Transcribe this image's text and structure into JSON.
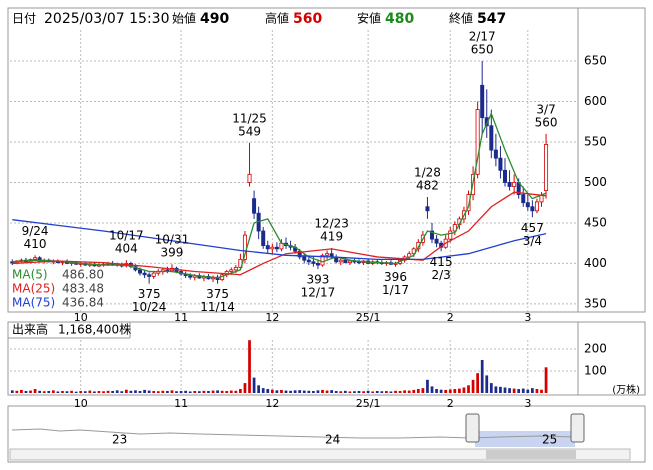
{
  "header": {
    "date_label": "日付",
    "datetime": "2025/03/07 15:30",
    "open_label": "始値",
    "open": 490,
    "high_label": "高値",
    "high": 560,
    "low_label": "安値",
    "low": 480,
    "close_label": "終値",
    "close": 547
  },
  "chart_data": [
    {
      "type": "candlestick",
      "ylim": [
        340,
        713
      ],
      "yticks": [
        350,
        400,
        450,
        500,
        550,
        600,
        650
      ],
      "xlim": [
        -0.5,
        124
      ],
      "xticks": [
        {
          "value": 15,
          "label": "10"
        },
        {
          "value": 37,
          "label": "11"
        },
        {
          "value": 57,
          "label": "12"
        },
        {
          "value": 78,
          "label": "25/1"
        },
        {
          "value": 96,
          "label": "2"
        },
        {
          "value": 113,
          "label": "3"
        }
      ],
      "up_color": "#d40000",
      "down_color": "#1c2a8c",
      "candles": [
        [
          402,
          405,
          398,
          401
        ],
        [
          401,
          404,
          399,
          403
        ],
        [
          403,
          406,
          400,
          404
        ],
        [
          404,
          407,
          401,
          402
        ],
        [
          402,
          406,
          400,
          405
        ],
        [
          405,
          410,
          403,
          407
        ],
        [
          407,
          409,
          402,
          403
        ],
        [
          403,
          406,
          400,
          404
        ],
        [
          404,
          406,
          401,
          402
        ],
        [
          402,
          405,
          399,
          403
        ],
        [
          403,
          405,
          400,
          401
        ],
        [
          401,
          403,
          398,
          402
        ],
        [
          402,
          405,
          399,
          400
        ],
        [
          400,
          403,
          397,
          401
        ],
        [
          401,
          403,
          398,
          399
        ],
        [
          399,
          402,
          396,
          400
        ],
        [
          400,
          402,
          397,
          398
        ],
        [
          398,
          401,
          395,
          399
        ],
        [
          399,
          402,
          396,
          397
        ],
        [
          397,
          400,
          394,
          398
        ],
        [
          398,
          401,
          396,
          399
        ],
        [
          399,
          402,
          397,
          400
        ],
        [
          400,
          403,
          397,
          399
        ],
        [
          399,
          401,
          396,
          398
        ],
        [
          398,
          401,
          395,
          397
        ],
        [
          397,
          404,
          395,
          400
        ],
        [
          400,
          402,
          394,
          396
        ],
        [
          396,
          399,
          390,
          392
        ],
        [
          392,
          395,
          385,
          388
        ],
        [
          388,
          392,
          382,
          386
        ],
        [
          386,
          389,
          375,
          384
        ],
        [
          384,
          390,
          381,
          388
        ],
        [
          388,
          393,
          385,
          390
        ],
        [
          390,
          395,
          386,
          392
        ],
        [
          392,
          396,
          388,
          391
        ],
        [
          391,
          399,
          389,
          394
        ],
        [
          394,
          396,
          388,
          390
        ],
        [
          390,
          393,
          385,
          387
        ],
        [
          387,
          390,
          382,
          385
        ],
        [
          385,
          388,
          380,
          383
        ],
        [
          383,
          387,
          379,
          385
        ],
        [
          385,
          388,
          381,
          382
        ],
        [
          382,
          386,
          378,
          384
        ],
        [
          384,
          387,
          380,
          381
        ],
        [
          381,
          385,
          377,
          383
        ],
        [
          383,
          386,
          375,
          380
        ],
        [
          380,
          388,
          378,
          386
        ],
        [
          386,
          392,
          383,
          390
        ],
        [
          390,
          395,
          386,
          392
        ],
        [
          392,
          398,
          388,
          395
        ],
        [
          395,
          412,
          392,
          405
        ],
        [
          405,
          440,
          400,
          435
        ],
        [
          500,
          549,
          495,
          510
        ],
        [
          480,
          490,
          455,
          462
        ],
        [
          462,
          470,
          430,
          440
        ],
        [
          440,
          445,
          418,
          422
        ],
        [
          422,
          428,
          412,
          418
        ],
        [
          418,
          424,
          412,
          420
        ],
        [
          420,
          426,
          414,
          418
        ],
        [
          418,
          430,
          415,
          425
        ],
        [
          425,
          432,
          418,
          422
        ],
        [
          422,
          428,
          416,
          420
        ],
        [
          420,
          424,
          412,
          415
        ],
        [
          415,
          418,
          405,
          408
        ],
        [
          408,
          412,
          400,
          404
        ],
        [
          404,
          410,
          398,
          402
        ],
        [
          402,
          408,
          396,
          400
        ],
        [
          400,
          405,
          393,
          398
        ],
        [
          398,
          412,
          396,
          410
        ],
        [
          410,
          416,
          405,
          412
        ],
        [
          412,
          419,
          406,
          408
        ],
        [
          408,
          411,
          400,
          402
        ],
        [
          402,
          406,
          398,
          404
        ],
        [
          404,
          407,
          400,
          401
        ],
        [
          401,
          405,
          398,
          403
        ],
        [
          403,
          406,
          400,
          402
        ],
        [
          402,
          405,
          399,
          401
        ],
        [
          401,
          404,
          398,
          403
        ],
        [
          403,
          406,
          399,
          400
        ],
        [
          400,
          404,
          398,
          402
        ],
        [
          402,
          405,
          399,
          401
        ],
        [
          401,
          404,
          398,
          400
        ],
        [
          400,
          403,
          397,
          401
        ],
        [
          401,
          404,
          398,
          399
        ],
        [
          399,
          402,
          396,
          400
        ],
        [
          400,
          406,
          398,
          404
        ],
        [
          404,
          410,
          401,
          408
        ],
        [
          408,
          415,
          405,
          412
        ],
        [
          412,
          420,
          408,
          418
        ],
        [
          418,
          430,
          414,
          426
        ],
        [
          426,
          440,
          422,
          435
        ],
        [
          470,
          482,
          455,
          465
        ],
        [
          440,
          450,
          425,
          430
        ],
        [
          430,
          435,
          420,
          425
        ],
        [
          425,
          428,
          415,
          420
        ],
        [
          420,
          435,
          418,
          430
        ],
        [
          430,
          445,
          426,
          440
        ],
        [
          440,
          452,
          435,
          448
        ],
        [
          448,
          458,
          442,
          455
        ],
        [
          455,
          470,
          450,
          465
        ],
        [
          465,
          490,
          460,
          485
        ],
        [
          485,
          520,
          478,
          510
        ],
        [
          510,
          600,
          505,
          590
        ],
        [
          620,
          650,
          560,
          580
        ],
        [
          580,
          615,
          555,
          570
        ],
        [
          570,
          590,
          530,
          540
        ],
        [
          540,
          560,
          520,
          530
        ],
        [
          530,
          545,
          505,
          515
        ],
        [
          515,
          530,
          495,
          500
        ],
        [
          500,
          515,
          490,
          495
        ],
        [
          495,
          510,
          485,
          500
        ],
        [
          500,
          505,
          480,
          485
        ],
        [
          485,
          495,
          470,
          475
        ],
        [
          475,
          485,
          465,
          470
        ],
        [
          470,
          478,
          457,
          465
        ],
        [
          465,
          480,
          462,
          476
        ],
        [
          476,
          488,
          470,
          484
        ],
        [
          490,
          560,
          480,
          547
        ]
      ],
      "ma": [
        {
          "name": "MA(5)",
          "color": "#2e8b2e",
          "last_value": 486.8,
          "last_value_label": "486.80",
          "x": [
            0,
            5,
            10,
            15,
            20,
            25,
            30,
            35,
            40,
            45,
            50,
            53,
            56,
            59,
            62,
            65,
            68,
            71,
            74,
            77,
            80,
            84,
            88,
            91,
            94,
            97,
            100,
            103,
            105,
            108,
            111,
            114,
            117
          ],
          "values": [
            402,
            404,
            403,
            400,
            398,
            398,
            390,
            390,
            385,
            382,
            392,
            450,
            455,
            425,
            420,
            408,
            402,
            408,
            404,
            402,
            401,
            400,
            410,
            440,
            435,
            438,
            470,
            560,
            585,
            540,
            500,
            480,
            486.8
          ]
        },
        {
          "name": "MA(25)",
          "color": "#e02020",
          "last_value": 483.48,
          "last_value_label": "483.48",
          "x": [
            0,
            10,
            20,
            30,
            40,
            50,
            55,
            60,
            70,
            80,
            90,
            95,
            100,
            105,
            110,
            117
          ],
          "values": [
            400,
            403,
            401,
            396,
            390,
            386,
            400,
            412,
            418,
            408,
            404,
            425,
            440,
            470,
            488,
            483.48
          ]
        },
        {
          "name": "MA(75)",
          "color": "#2040d0",
          "last_value": 436.84,
          "last_value_label": "436.84",
          "x": [
            0,
            10,
            20,
            30,
            40,
            50,
            60,
            70,
            80,
            90,
            100,
            110,
            117
          ],
          "values": [
            454,
            447,
            440,
            432,
            424,
            416,
            410,
            408,
            405,
            405,
            412,
            428,
            436.84
          ]
        }
      ],
      "annotations": [
        {
          "date": "9/24",
          "value": 410
        },
        {
          "date": "10/17",
          "value": 404
        },
        {
          "date": "10/24",
          "value": 375
        },
        {
          "date": "10/31",
          "value": 399
        },
        {
          "date": "11/14",
          "value": 375
        },
        {
          "date": "11/25",
          "value": 549
        },
        {
          "date": "12/17",
          "value": 393
        },
        {
          "date": "12/23",
          "value": 419
        },
        {
          "date": "1/17",
          "value": 396
        },
        {
          "date": "1/28",
          "value": 482
        },
        {
          "date": "2/3",
          "value": 415
        },
        {
          "date": "2/17",
          "value": 650
        },
        {
          "date": "3/4",
          "value": 457
        },
        {
          "date": "3/7",
          "value": 560
        }
      ]
    },
    {
      "type": "volume",
      "title": "出来高",
      "total": {
        "value": 1168400,
        "label": "1,168,400株"
      },
      "unit": "(万株)",
      "ylim": [
        0,
        320
      ],
      "yticks": [
        100,
        200
      ],
      "values": [
        12,
        10,
        14,
        9,
        11,
        18,
        10,
        8,
        9,
        12,
        7,
        9,
        8,
        10,
        6,
        9,
        8,
        11,
        7,
        9,
        8,
        10,
        9,
        12,
        8,
        15,
        10,
        12,
        9,
        14,
        11,
        9,
        8,
        10,
        9,
        12,
        8,
        9,
        10,
        7,
        9,
        8,
        10,
        9,
        11,
        12,
        10,
        9,
        11,
        10,
        18,
        45,
        240,
        70,
        35,
        22,
        18,
        15,
        12,
        14,
        11,
        10,
        12,
        13,
        11,
        10,
        9,
        12,
        14,
        11,
        13,
        9,
        8,
        10,
        7,
        8,
        9,
        8,
        10,
        7,
        9,
        8,
        9,
        7,
        10,
        9,
        12,
        11,
        14,
        18,
        22,
        60,
        30,
        18,
        15,
        14,
        16,
        18,
        20,
        25,
        35,
        60,
        90,
        150,
        80,
        45,
        30,
        28,
        25,
        22,
        20,
        18,
        20,
        15,
        22,
        18,
        15,
        116.84
      ]
    },
    {
      "type": "navigator",
      "labels": [
        "23",
        "24",
        "25"
      ]
    }
  ]
}
